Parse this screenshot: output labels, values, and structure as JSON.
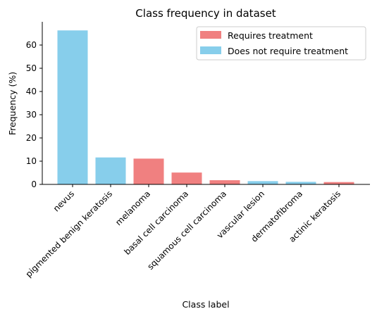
{
  "chart_data": {
    "type": "bar",
    "title": "Class frequency in dataset",
    "xlabel": "Class label",
    "ylabel": "Frequency (%)",
    "ylim": [
      0,
      70
    ],
    "yticks": [
      0,
      10,
      20,
      30,
      40,
      50,
      60
    ],
    "grid": false,
    "legend_position": "top-right",
    "categories": [
      "nevus",
      "pigmented benign keratosis",
      "melanoma",
      "basal cell carcinoma",
      "squamous cell carcinoma",
      "vascular lesion",
      "dermatofibroma",
      "actinic keratosis"
    ],
    "values": [
      66.3,
      11.6,
      11.1,
      5.1,
      1.8,
      1.4,
      1.1,
      1.0
    ],
    "groups": [
      "Does not require treatment",
      "Does not require treatment",
      "Requires treatment",
      "Requires treatment",
      "Requires treatment",
      "Does not require treatment",
      "Does not require treatment",
      "Requires treatment"
    ],
    "legend": [
      {
        "label": "Requires treatment",
        "color": "#f08080"
      },
      {
        "label": "Does not require treatment",
        "color": "#87ceeb"
      }
    ]
  }
}
